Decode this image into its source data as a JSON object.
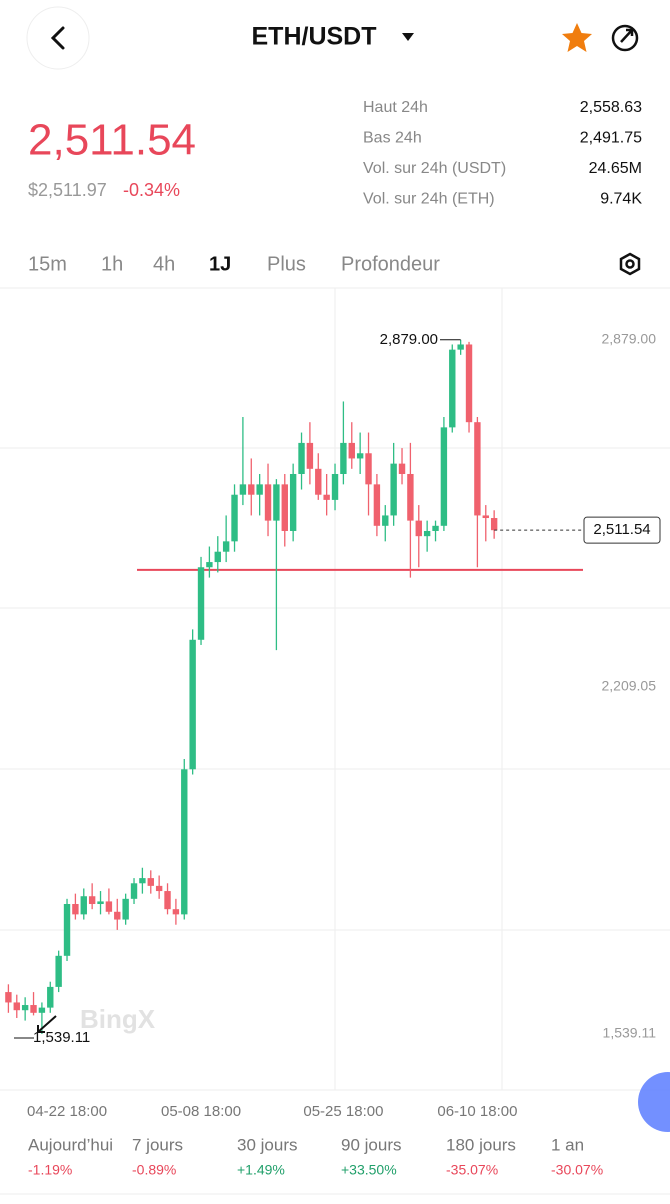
{
  "header": {
    "title": "ETH/USDT"
  },
  "ticker": {
    "price": "2,511.54",
    "usd_price": "$2,511.97",
    "change": "-0.34%",
    "stats": [
      {
        "label": "Haut 24h",
        "value": "2,558.63"
      },
      {
        "label": "Bas 24h",
        "value": "2,491.75"
      },
      {
        "label": "Vol. sur 24h (USDT)",
        "value": "24.65M"
      },
      {
        "label": "Vol. sur 24h (ETH)",
        "value": "9.74K"
      }
    ]
  },
  "tabs": [
    "15m",
    "1h",
    "4h",
    "1J",
    "Plus",
    "Profondeur"
  ],
  "chart_data": {
    "type": "candlestick",
    "watermark": "BingX",
    "categories": [
      null,
      null,
      null,
      null,
      null,
      null,
      null,
      "04-22 18:00",
      null,
      null,
      null,
      null,
      null,
      null,
      null,
      null,
      null,
      null,
      null,
      null,
      null,
      null,
      null,
      "05-08 18:00",
      null,
      null,
      null,
      null,
      null,
      null,
      null,
      null,
      null,
      null,
      null,
      null,
      null,
      null,
      null,
      null,
      "05-25 18:00",
      null,
      null,
      null,
      null,
      null,
      null,
      null,
      null,
      null,
      null,
      null,
      null,
      null,
      null,
      null,
      "06-10 18:00",
      null,
      null
    ],
    "open": [
      1620,
      1600,
      1585,
      1595,
      1580,
      1590,
      1630,
      1690,
      1790,
      1770,
      1805,
      1790,
      1795,
      1775,
      1760,
      1800,
      1830,
      1840,
      1825,
      1815,
      1780,
      1770,
      2050,
      2300,
      2440,
      2450,
      2470,
      2490,
      2580,
      2600,
      2580,
      2600,
      2530,
      2600,
      2510,
      2620,
      2680,
      2630,
      2580,
      2570,
      2620,
      2680,
      2650,
      2660,
      2600,
      2520,
      2540,
      2640,
      2620,
      2530,
      2500,
      2510,
      2520,
      2710,
      2860,
      2870,
      2720,
      2540,
      2535
    ],
    "high": [
      1635,
      1615,
      1610,
      1620,
      1600,
      1640,
      1700,
      1800,
      1810,
      1820,
      1830,
      1815,
      1820,
      1800,
      1810,
      1840,
      1860,
      1855,
      1845,
      1830,
      1800,
      2070,
      2320,
      2460,
      2480,
      2500,
      2540,
      2600,
      2730,
      2650,
      2620,
      2640,
      2610,
      2620,
      2640,
      2700,
      2720,
      2660,
      2620,
      2640,
      2760,
      2720,
      2700,
      2700,
      2620,
      2560,
      2680,
      2670,
      2680,
      2560,
      2530,
      2530,
      2730,
      2870,
      2879,
      2875,
      2730,
      2560,
      2550
    ],
    "low": [
      1580,
      1570,
      1565,
      1575,
      1539.11,
      1580,
      1620,
      1680,
      1760,
      1760,
      1780,
      1770,
      1770,
      1740,
      1750,
      1790,
      1810,
      1810,
      1800,
      1770,
      1750,
      1760,
      2040,
      2290,
      2420,
      2430,
      2450,
      2470,
      2560,
      2540,
      2540,
      2500,
      2280,
      2480,
      2490,
      2590,
      2600,
      2570,
      2540,
      2550,
      2600,
      2630,
      2620,
      2540,
      2500,
      2490,
      2520,
      2600,
      2420,
      2440,
      2470,
      2490,
      2510,
      2700,
      2850,
      2700,
      2440,
      2490,
      2495
    ],
    "close": [
      1600,
      1585,
      1595,
      1580,
      1590,
      1630,
      1690,
      1790,
      1770,
      1805,
      1790,
      1795,
      1775,
      1760,
      1800,
      1830,
      1840,
      1825,
      1815,
      1780,
      1770,
      2050,
      2300,
      2440,
      2450,
      2470,
      2490,
      2580,
      2600,
      2580,
      2600,
      2530,
      2600,
      2510,
      2620,
      2680,
      2630,
      2580,
      2570,
      2620,
      2680,
      2650,
      2660,
      2600,
      2520,
      2540,
      2640,
      2620,
      2530,
      2500,
      2510,
      2520,
      2710,
      2860,
      2870,
      2720,
      2540,
      2535,
      2511.54
    ],
    "up_color": "#2ebd85",
    "down_color": "#f0616d",
    "ylim": [
      1431,
      2979
    ],
    "yticks": [
      {
        "value": 1539.11,
        "label": "1,539.11"
      },
      {
        "value": 2209.05,
        "label": "2,209.05"
      },
      {
        "value": 2879,
        "label": "2,879.00"
      }
    ],
    "max_label": {
      "value": 2879,
      "label": "2,879.00"
    },
    "min_label": {
      "value": 1539.11,
      "label": "1,539.11"
    },
    "last_price": {
      "value": 2511.54,
      "label": "2,511.54"
    },
    "horizontal_line": {
      "value": 2435,
      "color": "#e8475a"
    }
  },
  "performance": [
    {
      "label": "Aujourd’hui",
      "value": "-1.19%"
    },
    {
      "label": "7 jours",
      "value": "-0.89%"
    },
    {
      "label": "30 jours",
      "value": "+1.49%"
    },
    {
      "label": "90 jours",
      "value": "+33.50%"
    },
    {
      "label": "180 jours",
      "value": "-35.07%"
    },
    {
      "label": "1 an",
      "value": "-30.07%"
    }
  ]
}
